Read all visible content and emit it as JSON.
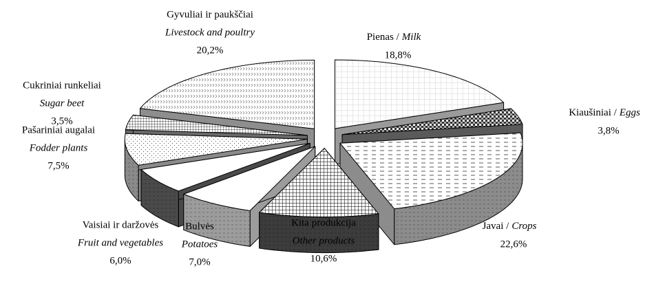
{
  "chart_data": {
    "type": "pie3d",
    "categories": [
      "Pienas /",
      "Kiaušiniai /",
      "Javai /",
      "Kita produkcija",
      "Bulvės",
      "Vaisiai ir daržovės",
      "Pašariniai augalai",
      "Cukriniai runkeliai",
      "Gyvuliai ir paukščiai"
    ],
    "categories_en": [
      "Milk",
      "Eggs",
      "Crops",
      "Other products",
      "Potatoes",
      "Fruit and vegetables",
      "Fodder plants",
      "Sugar beet",
      "Livestock and poultry"
    ],
    "values": [
      18.8,
      3.8,
      22.6,
      10.6,
      7.0,
      6.0,
      7.5,
      3.5,
      20.2
    ],
    "value_labels": [
      "18,8%",
      "3,8%",
      "22,6%",
      "10,6%",
      "7,0%",
      "6,0%",
      "7,5%",
      "3,5%",
      "20,2%"
    ],
    "colors": [
      "#9a9a9a",
      "#5a5a5a",
      "#8c8c8c",
      "#3c3c3c",
      "#9c9c9c",
      "#4a4a4a",
      "#8a8a8a",
      "#6a6a6a",
      "#8e8e8e"
    ]
  }
}
